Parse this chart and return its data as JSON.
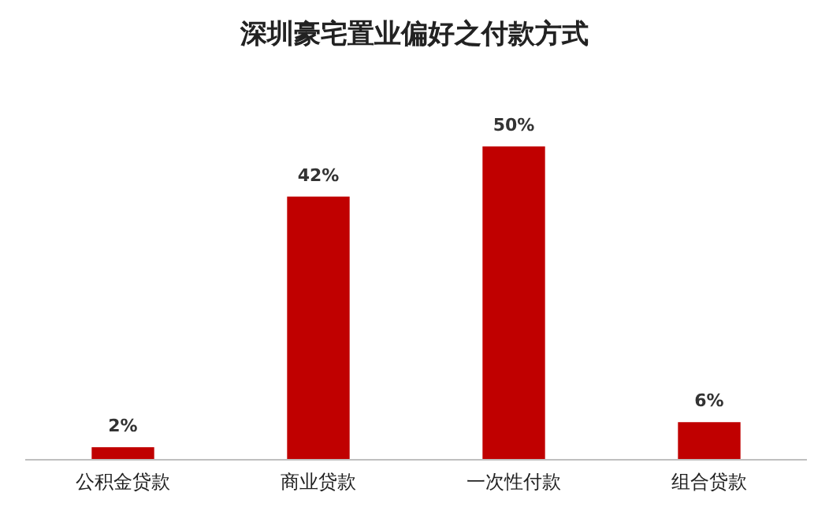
{
  "chart_data": {
    "type": "bar",
    "title": "深圳豪宅置业偏好之付款方式",
    "categories": [
      "公积金贷款",
      "商业贷款",
      "一次性付款",
      "组合贷款"
    ],
    "values": [
      2,
      42,
      50,
      6
    ],
    "value_labels": [
      "2%",
      "42%",
      "50%",
      "6%"
    ],
    "color": "#c00000"
  }
}
